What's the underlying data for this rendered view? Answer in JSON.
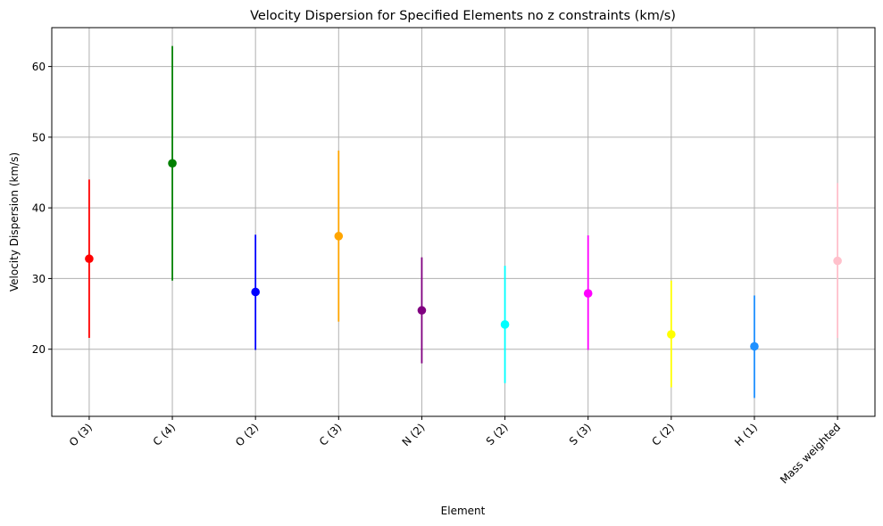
{
  "chart_data": {
    "type": "scatter",
    "title": "Velocity Dispersion for Specified Elements no z constraints (km/s)",
    "xlabel": "Element",
    "ylabel": "Velocity Dispersion (km/s)",
    "ylim": [
      10.5,
      65.5
    ],
    "yticks": [
      20,
      30,
      40,
      50,
      60
    ],
    "grid": true,
    "categories": [
      "O (3)",
      "C (4)",
      "O (2)",
      "C (3)",
      "N (2)",
      "S (2)",
      "S (3)",
      "C (2)",
      "H (1)",
      "Mass weighted"
    ],
    "values": [
      32.8,
      46.3,
      28.1,
      36.0,
      25.5,
      23.5,
      27.9,
      22.1,
      20.4,
      32.5
    ],
    "lower": [
      21.6,
      29.7,
      19.9,
      23.9,
      18.0,
      15.2,
      19.9,
      14.6,
      13.1,
      21.6
    ],
    "upper": [
      44.0,
      62.9,
      36.2,
      48.1,
      33.0,
      31.8,
      36.1,
      29.7,
      27.6,
      43.5
    ],
    "colors": [
      "#ff0000",
      "#008000",
      "#0000ff",
      "#ffa500",
      "#800080",
      "#00ffff",
      "#ff00ff",
      "#ffff00",
      "#1e90ff",
      "#ffc0cb"
    ]
  }
}
